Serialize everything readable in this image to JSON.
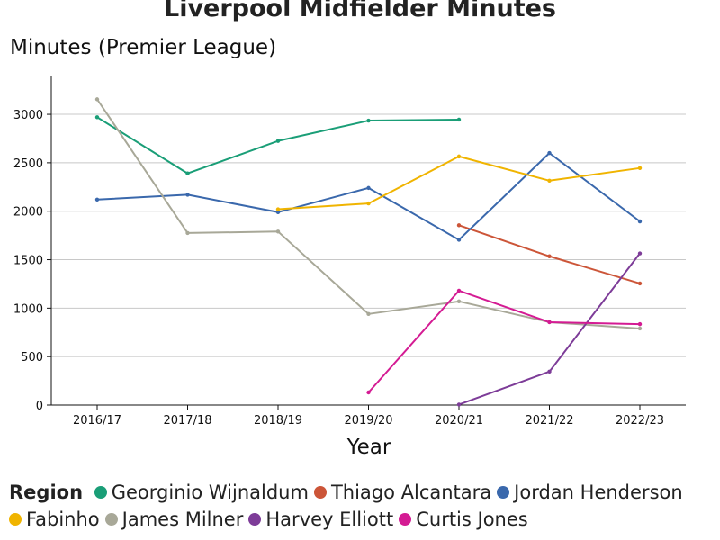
{
  "chart_data": {
    "type": "line",
    "title": "Liverpool Midfielder Minutes",
    "ylabel": "Minutes (Premier League)",
    "xlabel": "Year",
    "categories": [
      "2016/17",
      "2017/18",
      "2018/19",
      "2019/20",
      "2020/21",
      "2021/22",
      "2022/23"
    ],
    "ylim": [
      0,
      3400
    ],
    "yticks": [
      0,
      500,
      1000,
      1500,
      2000,
      2500,
      3000
    ],
    "grid": "horizontal",
    "legend_title": "Region",
    "legend_position": "bottom",
    "series": [
      {
        "name": "Georginio Wijnaldum",
        "color": "#1a9e77",
        "values": [
          2970,
          2390,
          2725,
          2935,
          2945,
          null,
          null
        ]
      },
      {
        "name": "Thiago Alcantara",
        "color": "#cc5538",
        "values": [
          null,
          null,
          null,
          null,
          1855,
          1535,
          1255
        ]
      },
      {
        "name": "Jordan Henderson",
        "color": "#3a68ac",
        "values": [
          2120,
          2170,
          1990,
          2240,
          1705,
          2600,
          1895
        ]
      },
      {
        "name": "Fabinho",
        "color": "#f0b400",
        "values": [
          null,
          null,
          2020,
          2080,
          2565,
          2315,
          2445
        ]
      },
      {
        "name": "James Milner",
        "color": "#a8a898",
        "values": [
          3155,
          1775,
          1790,
          940,
          1070,
          855,
          790
        ]
      },
      {
        "name": "Harvey Elliott",
        "color": "#7d3c98",
        "values": [
          null,
          null,
          null,
          null,
          5,
          345,
          1565
        ]
      },
      {
        "name": "Curtis Jones",
        "color": "#d41b93",
        "values": [
          null,
          null,
          null,
          130,
          1180,
          855,
          835
        ]
      }
    ]
  }
}
